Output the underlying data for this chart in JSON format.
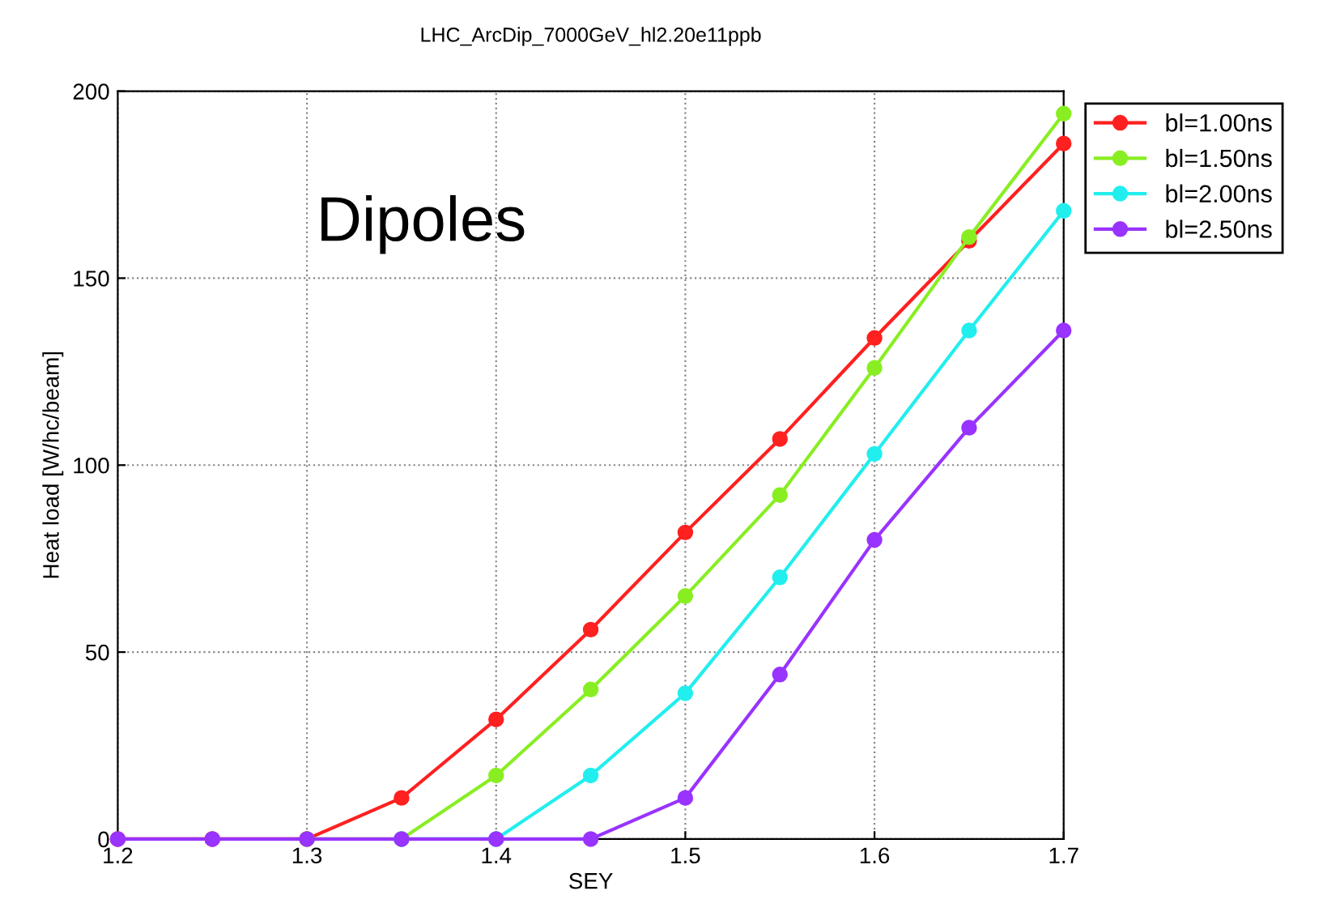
{
  "chart_data": {
    "type": "line",
    "title": "LHC_ArcDip_7000GeV_hl2.20e11ppb",
    "xlabel": "SEY",
    "ylabel": "Heat load [W/hc/beam]",
    "annotations": [
      "Dipoles"
    ],
    "x": [
      1.2,
      1.25,
      1.3,
      1.35,
      1.4,
      1.45,
      1.5,
      1.55,
      1.6,
      1.65,
      1.7
    ],
    "series": [
      {
        "name": "bl=1.00ns",
        "color": "#ff2020",
        "values": [
          0,
          0,
          0,
          11,
          32,
          56,
          82,
          107,
          134,
          160,
          186
        ]
      },
      {
        "name": "bl=1.50ns",
        "color": "#88ee22",
        "values": [
          null,
          null,
          0,
          0,
          17,
          40,
          65,
          92,
          126,
          161,
          194
        ]
      },
      {
        "name": "bl=2.00ns",
        "color": "#22eeee",
        "values": [
          null,
          null,
          null,
          0,
          0,
          17,
          39,
          70,
          103,
          136,
          168
        ]
      },
      {
        "name": "bl=2.50ns",
        "color": "#9933ff",
        "values": [
          0,
          0,
          0,
          0,
          0,
          0,
          11,
          44,
          80,
          110,
          136
        ]
      }
    ],
    "xlim": [
      1.2,
      1.7
    ],
    "ylim": [
      0,
      200
    ],
    "xticks": [
      1.2,
      1.3,
      1.4,
      1.5,
      1.6,
      1.7
    ],
    "yticks": [
      0,
      50,
      100,
      150,
      200
    ],
    "grid": true,
    "legend": "top right",
    "marker": "circle",
    "line_style": "solid"
  }
}
